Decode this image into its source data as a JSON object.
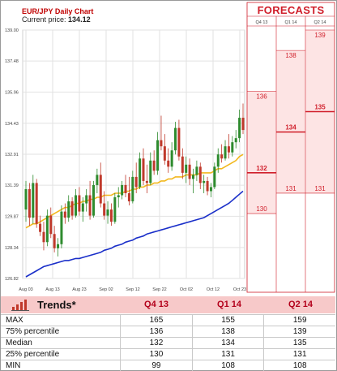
{
  "header": {
    "title": "EUR/JPY Daily Chart",
    "price_label": "Current price:",
    "price_value": "134.12"
  },
  "forecasts": {
    "title": "FORECASTS",
    "columns": [
      "Q4 13",
      "Q1 14",
      "Q2 14"
    ],
    "max": [
      136,
      138,
      139
    ],
    "median": [
      132,
      134,
      135
    ],
    "min": [
      130,
      131,
      131
    ]
  },
  "trends": {
    "label": "Trends",
    "asterisk": "*",
    "columns": [
      "Q4 13",
      "Q1 14",
      "Q2 14"
    ],
    "rows": [
      {
        "label": "MAX",
        "values": [
          "165",
          "155",
          "159"
        ]
      },
      {
        "label": "75% percentile",
        "values": [
          "136",
          "138",
          "139"
        ]
      },
      {
        "label": "Median",
        "values": [
          "132",
          "134",
          "135"
        ]
      },
      {
        "label": "25% percentile",
        "values": [
          "130",
          "131",
          "131"
        ]
      },
      {
        "label": "MIN",
        "values": [
          "99",
          "108",
          "108"
        ]
      }
    ]
  },
  "colors": {
    "up": "#2e8b2e",
    "down": "#c0392b",
    "ma_short": "#f2b81e",
    "ma_long": "#1a2fc9",
    "forecast_red": "#d01e2a"
  },
  "chart_data": {
    "type": "candlestick",
    "title": "EUR/JPY Daily Chart",
    "ylim": [
      126.82,
      139.0
    ],
    "y_ticks": [
      "139.00",
      "137.48",
      "135.96",
      "134.43",
      "132.91",
      "131.39",
      "129.87",
      "128.34",
      "126.82"
    ],
    "x_ticks": [
      "Aug 03",
      "Aug 13",
      "Aug 23",
      "Sep 02",
      "Sep 12",
      "Sep 22",
      "Oct 02",
      "Oct 12",
      "Oct 23"
    ],
    "grid": true,
    "candles": [
      {
        "o": 130.2,
        "h": 131.6,
        "l": 129.6,
        "c": 131.2
      },
      {
        "o": 131.2,
        "h": 131.5,
        "l": 129.4,
        "c": 129.8
      },
      {
        "o": 129.8,
        "h": 131.9,
        "l": 129.5,
        "c": 131.5
      },
      {
        "o": 131.5,
        "h": 131.7,
        "l": 129.3,
        "c": 129.5
      },
      {
        "o": 129.5,
        "h": 129.9,
        "l": 128.9,
        "c": 129.1
      },
      {
        "o": 129.1,
        "h": 129.6,
        "l": 128.2,
        "c": 128.6
      },
      {
        "o": 128.6,
        "h": 130.2,
        "l": 128.4,
        "c": 129.9
      },
      {
        "o": 129.9,
        "h": 130.3,
        "l": 128.8,
        "c": 129.0
      },
      {
        "o": 129.0,
        "h": 129.4,
        "l": 128.1,
        "c": 128.3
      },
      {
        "o": 128.3,
        "h": 128.8,
        "l": 127.9,
        "c": 128.5
      },
      {
        "o": 128.5,
        "h": 130.4,
        "l": 128.3,
        "c": 130.1
      },
      {
        "o": 130.1,
        "h": 130.5,
        "l": 129.5,
        "c": 129.8
      },
      {
        "o": 129.8,
        "h": 130.9,
        "l": 129.6,
        "c": 130.6
      },
      {
        "o": 130.6,
        "h": 130.8,
        "l": 129.7,
        "c": 129.9
      },
      {
        "o": 129.9,
        "h": 131.2,
        "l": 129.8,
        "c": 130.9
      },
      {
        "o": 130.9,
        "h": 131.3,
        "l": 129.9,
        "c": 130.1
      },
      {
        "o": 130.1,
        "h": 130.8,
        "l": 129.6,
        "c": 130.5
      },
      {
        "o": 130.5,
        "h": 131.2,
        "l": 130.1,
        "c": 130.9
      },
      {
        "o": 130.9,
        "h": 131.6,
        "l": 129.7,
        "c": 129.9
      },
      {
        "o": 129.9,
        "h": 131.6,
        "l": 129.8,
        "c": 131.4
      },
      {
        "o": 131.4,
        "h": 132.2,
        "l": 131.0,
        "c": 131.9
      },
      {
        "o": 131.9,
        "h": 132.5,
        "l": 130.3,
        "c": 130.5
      },
      {
        "o": 130.5,
        "h": 131.1,
        "l": 129.7,
        "c": 129.9
      },
      {
        "o": 129.9,
        "h": 130.6,
        "l": 129.5,
        "c": 130.2
      },
      {
        "o": 130.2,
        "h": 130.5,
        "l": 129.4,
        "c": 129.6
      },
      {
        "o": 129.6,
        "h": 131.0,
        "l": 129.5,
        "c": 130.8
      },
      {
        "o": 130.8,
        "h": 131.3,
        "l": 130.3,
        "c": 130.9
      },
      {
        "o": 130.9,
        "h": 131.6,
        "l": 130.7,
        "c": 131.4
      },
      {
        "o": 131.4,
        "h": 131.9,
        "l": 130.8,
        "c": 131.0
      },
      {
        "o": 131.0,
        "h": 131.8,
        "l": 130.4,
        "c": 130.6
      },
      {
        "o": 130.6,
        "h": 132.1,
        "l": 130.5,
        "c": 131.8
      },
      {
        "o": 131.8,
        "h": 132.5,
        "l": 131.0,
        "c": 131.3
      },
      {
        "o": 131.3,
        "h": 133.0,
        "l": 131.2,
        "c": 132.7
      },
      {
        "o": 132.7,
        "h": 133.2,
        "l": 131.4,
        "c": 131.6
      },
      {
        "o": 131.6,
        "h": 132.4,
        "l": 131.0,
        "c": 131.5
      },
      {
        "o": 131.5,
        "h": 133.0,
        "l": 131.4,
        "c": 132.6
      },
      {
        "o": 132.6,
        "h": 133.1,
        "l": 131.9,
        "c": 132.1
      },
      {
        "o": 132.1,
        "h": 134.0,
        "l": 131.9,
        "c": 133.6
      },
      {
        "o": 133.6,
        "h": 134.8,
        "l": 133.1,
        "c": 133.3
      },
      {
        "o": 133.3,
        "h": 133.9,
        "l": 132.4,
        "c": 132.6
      },
      {
        "o": 132.6,
        "h": 133.2,
        "l": 132.0,
        "c": 132.3
      },
      {
        "o": 132.3,
        "h": 133.5,
        "l": 132.1,
        "c": 133.1
      },
      {
        "o": 133.1,
        "h": 134.5,
        "l": 132.9,
        "c": 134.2
      },
      {
        "o": 134.2,
        "h": 134.6,
        "l": 132.6,
        "c": 132.8
      },
      {
        "o": 132.8,
        "h": 133.2,
        "l": 131.7,
        "c": 132.0
      },
      {
        "o": 132.0,
        "h": 132.8,
        "l": 131.5,
        "c": 132.4
      },
      {
        "o": 132.4,
        "h": 132.7,
        "l": 131.4,
        "c": 131.7
      },
      {
        "o": 131.7,
        "h": 132.2,
        "l": 131.0,
        "c": 131.9
      },
      {
        "o": 131.9,
        "h": 132.6,
        "l": 131.6,
        "c": 132.3
      },
      {
        "o": 132.3,
        "h": 132.5,
        "l": 131.2,
        "c": 131.5
      },
      {
        "o": 131.5,
        "h": 131.9,
        "l": 131.0,
        "c": 131.6
      },
      {
        "o": 131.6,
        "h": 131.8,
        "l": 130.9,
        "c": 131.1
      },
      {
        "o": 131.1,
        "h": 131.5,
        "l": 130.8,
        "c": 131.3
      },
      {
        "o": 131.3,
        "h": 132.5,
        "l": 131.2,
        "c": 132.3
      },
      {
        "o": 132.3,
        "h": 133.2,
        "l": 132.0,
        "c": 132.9
      },
      {
        "o": 132.9,
        "h": 133.4,
        "l": 132.5,
        "c": 132.7
      },
      {
        "o": 132.7,
        "h": 133.6,
        "l": 132.6,
        "c": 133.3
      },
      {
        "o": 133.3,
        "h": 133.9,
        "l": 132.7,
        "c": 133.0
      },
      {
        "o": 133.0,
        "h": 133.8,
        "l": 132.8,
        "c": 133.5
      },
      {
        "o": 133.5,
        "h": 134.1,
        "l": 133.2,
        "c": 133.7
      },
      {
        "o": 133.7,
        "h": 135.1,
        "l": 133.5,
        "c": 134.7
      },
      {
        "o": 134.7,
        "h": 135.4,
        "l": 133.9,
        "c": 134.1
      }
    ],
    "series": [
      {
        "values": [
          129.3,
          129.4,
          129.5,
          129.5,
          129.6,
          129.7,
          129.8,
          129.9,
          130.0,
          130.1,
          130.2,
          130.3,
          130.3,
          130.4,
          130.5,
          130.5,
          130.6,
          130.6,
          130.7,
          130.7,
          130.8,
          130.8,
          130.9,
          130.9,
          130.9,
          131.0,
          131.0,
          131.0,
          131.1,
          131.1,
          131.2,
          131.2,
          131.3,
          131.3,
          131.4,
          131.4,
          131.5,
          131.5,
          131.6,
          131.6,
          131.7,
          131.7,
          131.8,
          131.8,
          131.8,
          131.9,
          131.9,
          131.9,
          131.9,
          132.0,
          132.0,
          132.0,
          132.0,
          132.1,
          132.2,
          132.2,
          132.3,
          132.4,
          132.5,
          132.6,
          132.8,
          132.9
        ]
      },
      {
        "values": [
          126.9,
          127.0,
          127.1,
          127.2,
          127.3,
          127.4,
          127.45,
          127.5,
          127.55,
          127.6,
          127.65,
          127.7,
          127.7,
          127.75,
          127.8,
          127.8,
          127.85,
          127.9,
          127.95,
          128.0,
          128.05,
          128.1,
          128.2,
          128.25,
          128.3,
          128.4,
          128.45,
          128.5,
          128.6,
          128.65,
          128.7,
          128.8,
          128.85,
          128.9,
          129.0,
          129.05,
          129.1,
          129.15,
          129.2,
          129.25,
          129.3,
          129.35,
          129.4,
          129.45,
          129.5,
          129.55,
          129.6,
          129.65,
          129.7,
          129.75,
          129.8,
          129.9,
          130.0,
          130.1,
          130.2,
          130.3,
          130.4,
          130.5,
          130.65,
          130.8,
          130.95,
          131.1
        ]
      }
    ]
  }
}
